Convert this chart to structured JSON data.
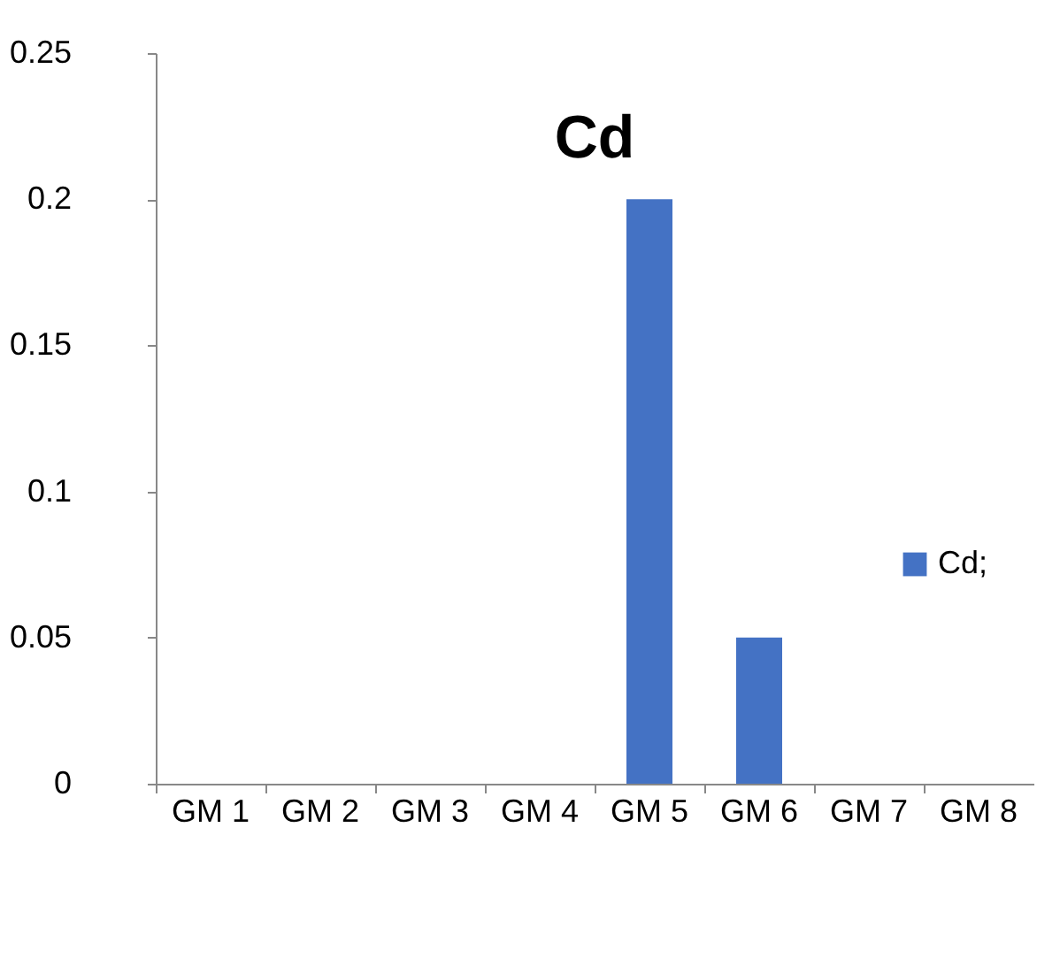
{
  "chart_data": {
    "type": "bar",
    "title": "Cd",
    "categories": [
      "GM 1",
      "GM 2",
      "GM 3",
      "GM 4",
      "GM 5",
      "GM 6",
      "GM 7",
      "GM 8"
    ],
    "series": [
      {
        "name": "Cd;",
        "color": "#4472c4",
        "values": [
          0,
          0,
          0,
          0,
          0.2,
          0.05,
          0,
          0
        ]
      }
    ],
    "ylim": [
      0,
      0.25
    ],
    "yticks": [
      0,
      0.05,
      0.1,
      0.15,
      0.2,
      0.25
    ],
    "grid": false,
    "legend": "right"
  }
}
